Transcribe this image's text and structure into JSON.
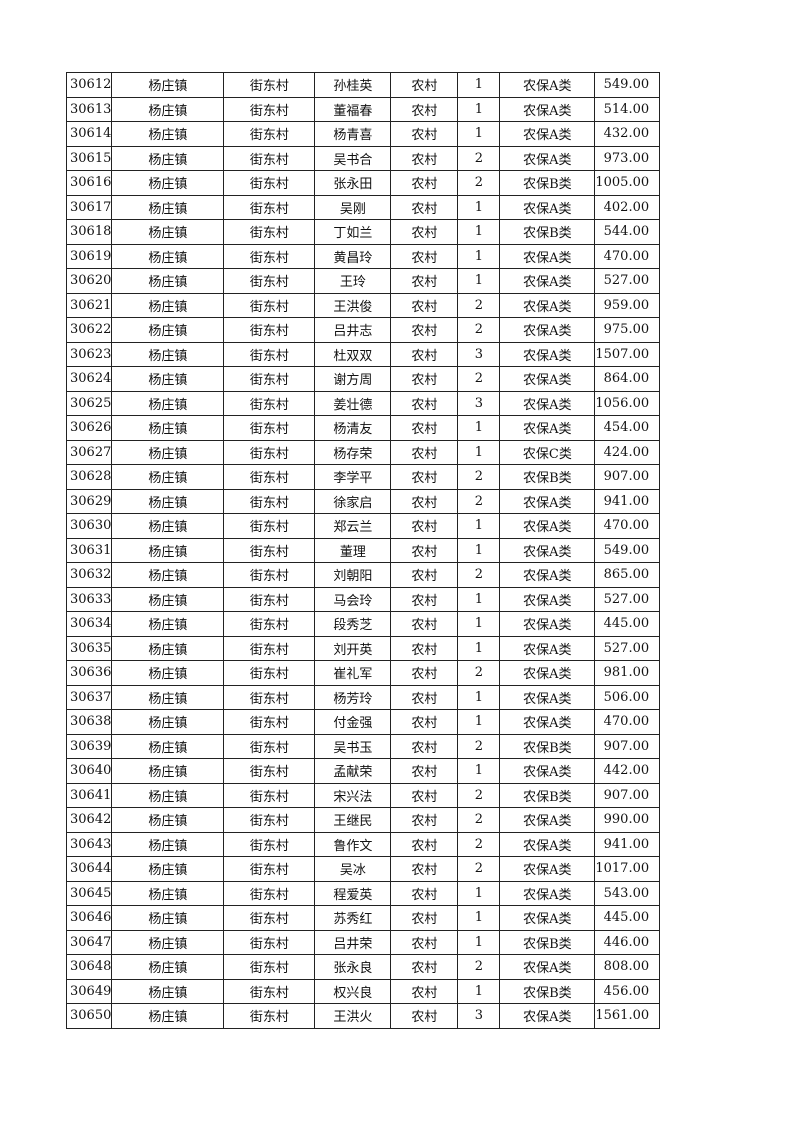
{
  "rows": [
    [
      "30612",
      "杨庄镇",
      "街东村",
      "孙桂英",
      "农村",
      "1",
      "农保A类",
      "549.00"
    ],
    [
      "30613",
      "杨庄镇",
      "街东村",
      "董福春",
      "农村",
      "1",
      "农保A类",
      "514.00"
    ],
    [
      "30614",
      "杨庄镇",
      "街东村",
      "杨青喜",
      "农村",
      "1",
      "农保A类",
      "432.00"
    ],
    [
      "30615",
      "杨庄镇",
      "街东村",
      "吴书合",
      "农村",
      "2",
      "农保A类",
      "973.00"
    ],
    [
      "30616",
      "杨庄镇",
      "街东村",
      "张永田",
      "农村",
      "2",
      "农保B类",
      "1005.00"
    ],
    [
      "30617",
      "杨庄镇",
      "街东村",
      "吴刚",
      "农村",
      "1",
      "农保A类",
      "402.00"
    ],
    [
      "30618",
      "杨庄镇",
      "街东村",
      "丁如兰",
      "农村",
      "1",
      "农保B类",
      "544.00"
    ],
    [
      "30619",
      "杨庄镇",
      "街东村",
      "黄昌玲",
      "农村",
      "1",
      "农保A类",
      "470.00"
    ],
    [
      "30620",
      "杨庄镇",
      "街东村",
      "王玲",
      "农村",
      "1",
      "农保A类",
      "527.00"
    ],
    [
      "30621",
      "杨庄镇",
      "街东村",
      "王洪俊",
      "农村",
      "2",
      "农保A类",
      "959.00"
    ],
    [
      "30622",
      "杨庄镇",
      "街东村",
      "吕井志",
      "农村",
      "2",
      "农保A类",
      "975.00"
    ],
    [
      "30623",
      "杨庄镇",
      "街东村",
      "杜双双",
      "农村",
      "3",
      "农保A类",
      "1507.00"
    ],
    [
      "30624",
      "杨庄镇",
      "街东村",
      "谢方周",
      "农村",
      "2",
      "农保A类",
      "864.00"
    ],
    [
      "30625",
      "杨庄镇",
      "街东村",
      "姜壮德",
      "农村",
      "3",
      "农保A类",
      "1056.00"
    ],
    [
      "30626",
      "杨庄镇",
      "街东村",
      "杨清友",
      "农村",
      "1",
      "农保A类",
      "454.00"
    ],
    [
      "30627",
      "杨庄镇",
      "街东村",
      "杨存荣",
      "农村",
      "1",
      "农保C类",
      "424.00"
    ],
    [
      "30628",
      "杨庄镇",
      "街东村",
      "李学平",
      "农村",
      "2",
      "农保B类",
      "907.00"
    ],
    [
      "30629",
      "杨庄镇",
      "街东村",
      "徐家启",
      "农村",
      "2",
      "农保A类",
      "941.00"
    ],
    [
      "30630",
      "杨庄镇",
      "街东村",
      "郑云兰",
      "农村",
      "1",
      "农保A类",
      "470.00"
    ],
    [
      "30631",
      "杨庄镇",
      "街东村",
      "董理",
      "农村",
      "1",
      "农保A类",
      "549.00"
    ],
    [
      "30632",
      "杨庄镇",
      "街东村",
      "刘朝阳",
      "农村",
      "2",
      "农保A类",
      "865.00"
    ],
    [
      "30633",
      "杨庄镇",
      "街东村",
      "马会玲",
      "农村",
      "1",
      "农保A类",
      "527.00"
    ],
    [
      "30634",
      "杨庄镇",
      "街东村",
      "段秀芝",
      "农村",
      "1",
      "农保A类",
      "445.00"
    ],
    [
      "30635",
      "杨庄镇",
      "街东村",
      "刘开英",
      "农村",
      "1",
      "农保A类",
      "527.00"
    ],
    [
      "30636",
      "杨庄镇",
      "街东村",
      "崔礼军",
      "农村",
      "2",
      "农保A类",
      "981.00"
    ],
    [
      "30637",
      "杨庄镇",
      "街东村",
      "杨芳玲",
      "农村",
      "1",
      "农保A类",
      "506.00"
    ],
    [
      "30638",
      "杨庄镇",
      "街东村",
      "付金强",
      "农村",
      "1",
      "农保A类",
      "470.00"
    ],
    [
      "30639",
      "杨庄镇",
      "街东村",
      "吴书玉",
      "农村",
      "2",
      "农保B类",
      "907.00"
    ],
    [
      "30640",
      "杨庄镇",
      "街东村",
      "孟献荣",
      "农村",
      "1",
      "农保A类",
      "442.00"
    ],
    [
      "30641",
      "杨庄镇",
      "街东村",
      "宋兴法",
      "农村",
      "2",
      "农保B类",
      "907.00"
    ],
    [
      "30642",
      "杨庄镇",
      "街东村",
      "王继民",
      "农村",
      "2",
      "农保A类",
      "990.00"
    ],
    [
      "30643",
      "杨庄镇",
      "街东村",
      "鲁作文",
      "农村",
      "2",
      "农保A类",
      "941.00"
    ],
    [
      "30644",
      "杨庄镇",
      "街东村",
      "吴冰",
      "农村",
      "2",
      "农保A类",
      "1017.00"
    ],
    [
      "30645",
      "杨庄镇",
      "街东村",
      "程爱英",
      "农村",
      "1",
      "农保A类",
      "543.00"
    ],
    [
      "30646",
      "杨庄镇",
      "街东村",
      "苏秀红",
      "农村",
      "1",
      "农保A类",
      "445.00"
    ],
    [
      "30647",
      "杨庄镇",
      "街东村",
      "吕井荣",
      "农村",
      "1",
      "农保B类",
      "446.00"
    ],
    [
      "30648",
      "杨庄镇",
      "街东村",
      "张永良",
      "农村",
      "2",
      "农保A类",
      "808.00"
    ],
    [
      "30649",
      "杨庄镇",
      "街东村",
      "权兴良",
      "农村",
      "1",
      "农保B类",
      "456.00"
    ],
    [
      "30650",
      "杨庄镇",
      "街东村",
      "王洪火",
      "农村",
      "3",
      "农保A类",
      "1561.00"
    ]
  ]
}
